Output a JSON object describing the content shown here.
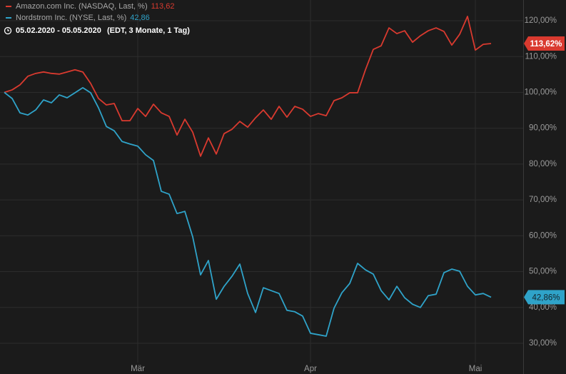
{
  "chart_data": {
    "type": "line",
    "legend": [
      {
        "text": "05.02.2020 - 05.05.2020",
        "detail": "(EDT, 3 Monate, 1 Tag)"
      }
    ],
    "categories": [
      null,
      null,
      null,
      null,
      null,
      null,
      null,
      null,
      null,
      null,
      null,
      null,
      null,
      null,
      null,
      null,
      null,
      "Mär",
      null,
      null,
      null,
      null,
      null,
      null,
      null,
      null,
      null,
      null,
      null,
      null,
      null,
      null,
      null,
      null,
      null,
      null,
      null,
      null,
      null,
      "Apr",
      null,
      null,
      null,
      null,
      null,
      null,
      null,
      null,
      null,
      null,
      null,
      null,
      null,
      null,
      null,
      null,
      null,
      null,
      null,
      null,
      "Mai",
      null,
      null
    ],
    "series": [
      {
        "name": "Amazon.com Inc. (NASDAQ, Last, %)",
        "color": "#d93a2f",
        "last_label": "113,62",
        "end_tag": "113,62%",
        "values": [
          100,
          100.7,
          102.1,
          104.5,
          105.3,
          105.7,
          105.3,
          105.1,
          105.7,
          106.3,
          105.7,
          102.5,
          98.3,
          96.5,
          96.9,
          92.1,
          92.1,
          95.5,
          93.3,
          96.7,
          94.3,
          93.3,
          88.1,
          92.5,
          88.9,
          82.2,
          87.3,
          82.8,
          88.5,
          89.7,
          91.9,
          90.3,
          92.9,
          95.1,
          92.5,
          96.1,
          93.1,
          96.1,
          95.3,
          93.3,
          94.1,
          93.5,
          97.7,
          98.5,
          99.9,
          99.9,
          106.3,
          112,
          113,
          118,
          116.4,
          117.2,
          114,
          115.8,
          117.2,
          118,
          117,
          113.2,
          116.2,
          121.2,
          111.8,
          113.4,
          113.62
        ]
      },
      {
        "name": "Nordstrom Inc. (NYSE, Last, %)",
        "color": "#2fa3c9",
        "last_label": "42,86",
        "end_tag": "42,86%",
        "values": [
          100,
          98.3,
          94.3,
          93.7,
          95.1,
          97.9,
          97.1,
          99.3,
          98.5,
          99.9,
          101.3,
          99.9,
          95.7,
          90.5,
          89.3,
          86.3,
          85.6,
          85,
          82.6,
          81,
          72.4,
          71.6,
          66.2,
          66.8,
          59.7,
          49.1,
          53.1,
          42.3,
          45.9,
          48.7,
          52.1,
          43.9,
          38.6,
          45.5,
          44.7,
          43.9,
          39.2,
          38.8,
          37.6,
          32.8,
          32.4,
          32,
          39.8,
          44.1,
          46.7,
          52.3,
          50.5,
          49.3,
          44.7,
          42.1,
          45.9,
          42.7,
          40.9,
          40,
          43.3,
          43.7,
          49.7,
          50.7,
          50.1,
          45.9,
          43.5,
          43.9,
          42.86
        ]
      }
    ],
    "ylim": [
      25,
      126
    ],
    "yticks": [
      {
        "value": 30,
        "label": "30,00%"
      },
      {
        "value": 40,
        "label": "40,00%"
      },
      {
        "value": 50,
        "label": "50,00%"
      },
      {
        "value": 60,
        "label": "60,00%"
      },
      {
        "value": 70,
        "label": "70,00%"
      },
      {
        "value": 80,
        "label": "80,00%"
      },
      {
        "value": 90,
        "label": "90,00%"
      },
      {
        "value": 100,
        "label": "100,00%"
      },
      {
        "value": 110,
        "label": "110,00%"
      },
      {
        "value": 120,
        "label": "120,00%"
      }
    ],
    "grid": true
  }
}
